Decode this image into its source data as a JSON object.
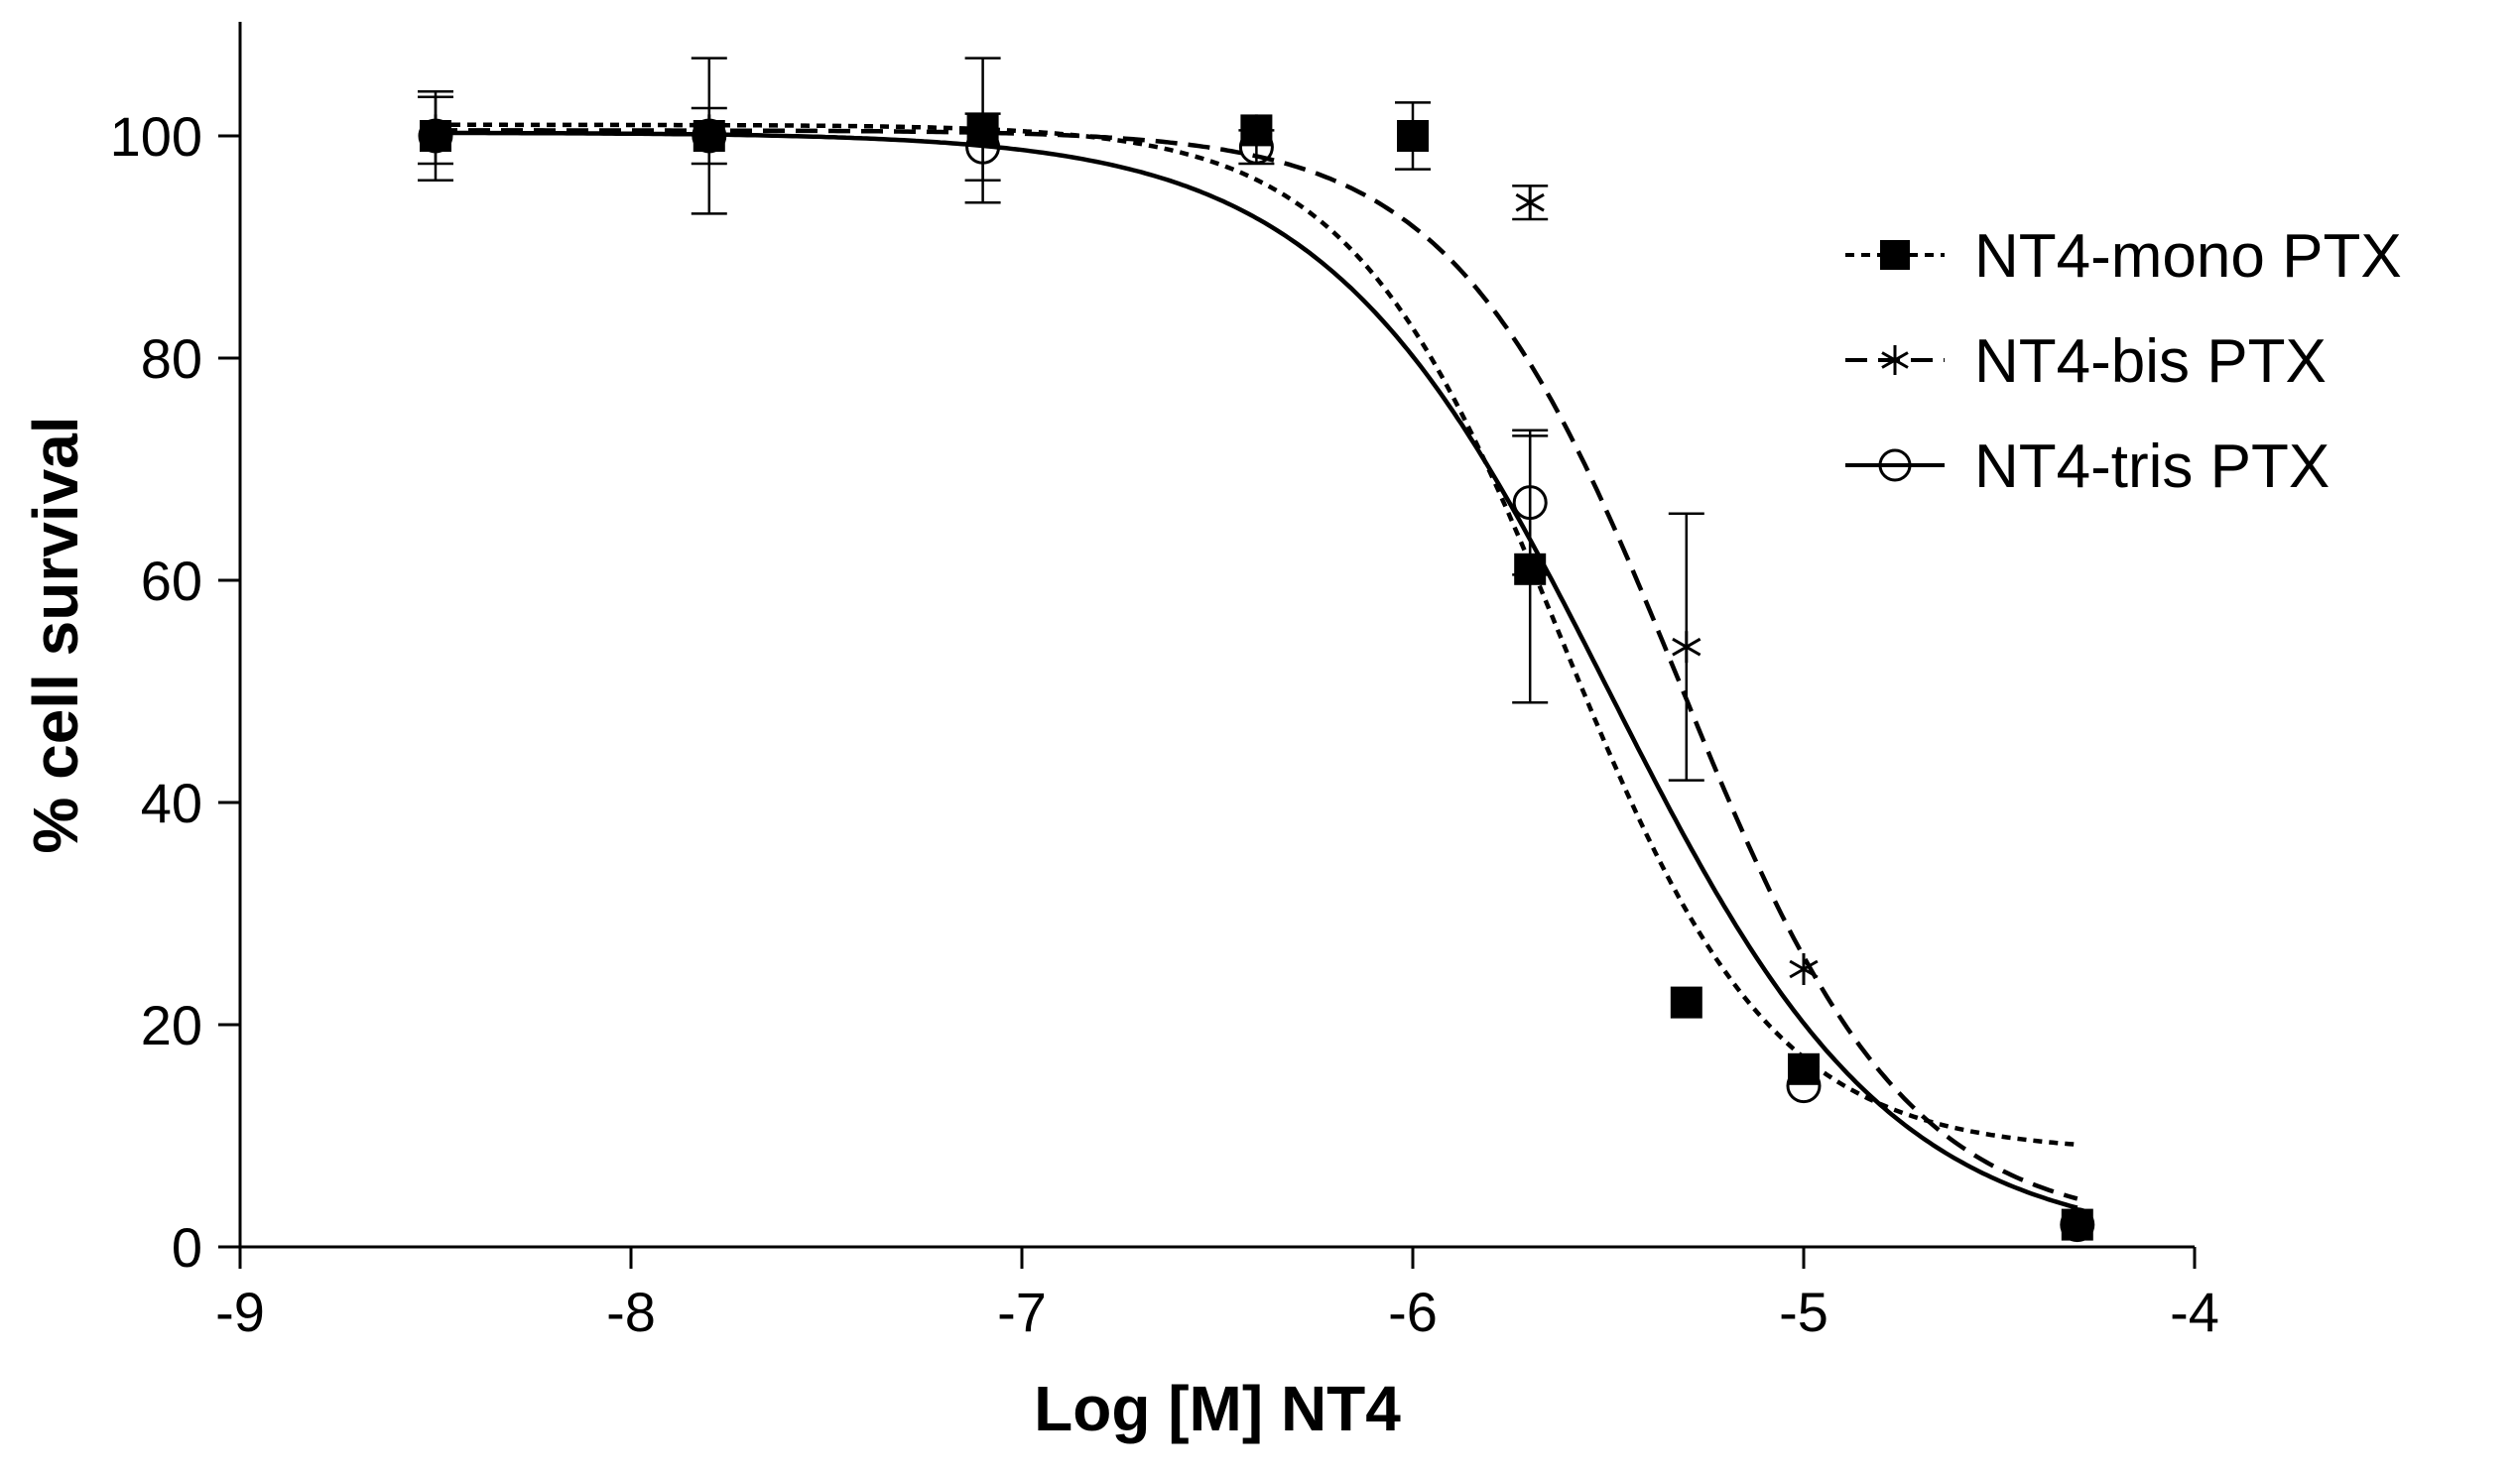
{
  "chart_data": {
    "type": "scatter",
    "title": "",
    "xlabel": "Log [M] NT4",
    "ylabel": "% cell survival",
    "xlim": [
      -9,
      -4
    ],
    "ylim": [
      0,
      110
    ],
    "xticks": [
      -9,
      -8,
      -7,
      -6,
      -5,
      -4
    ],
    "xtick_labels": [
      "-9",
      "-8",
      "-7",
      "-6",
      "-5",
      "-4"
    ],
    "yticks": [
      0,
      20,
      40,
      60,
      80,
      100
    ],
    "ytick_labels": [
      "0",
      "20",
      "40",
      "60",
      "80",
      "100"
    ],
    "grid": false,
    "legend_position": "right-upper",
    "series": [
      {
        "name": "NT4-mono PTX",
        "marker": "filled-square",
        "line_style": "dotted",
        "x": [
          -8.5,
          -7.8,
          -7.1,
          -6.4,
          -6.0,
          -5.7,
          -5.3,
          -5.0,
          -4.3
        ],
        "y": [
          100,
          100,
          100.5,
          100.5,
          100,
          61,
          22,
          16,
          2
        ],
        "err": [
          4,
          7,
          6.5,
          0,
          3,
          12,
          0,
          0,
          0
        ],
        "fit": {
          "top": 101,
          "bottom": 8.5,
          "log_ec50": -5.62,
          "hill": 1.6
        }
      },
      {
        "name": "NT4-bis PTX",
        "marker": "asterisk",
        "line_style": "dashed",
        "x": [
          -8.5,
          -7.8,
          -7.1,
          -6.4,
          -6.0,
          -5.7,
          -5.3,
          -5.0,
          -4.3
        ],
        "y": [
          100.5,
          100.5,
          100.5,
          100.5,
          100,
          94,
          54,
          25,
          2
        ],
        "err": [
          3,
          0,
          0,
          0,
          0,
          1.5,
          12,
          0,
          0
        ],
        "fit": {
          "top": 100.5,
          "bottom": 1.5,
          "log_ec50": -5.32,
          "hill": 1.5
        }
      },
      {
        "name": "NT4-tris PTX",
        "marker": "open-circle",
        "line_style": "solid",
        "x": [
          -8.5,
          -7.8,
          -7.1,
          -6.4,
          -5.7,
          -5.0,
          -4.3
        ],
        "y": [
          100,
          100,
          99,
          99,
          67,
          14.5,
          2
        ],
        "err": [
          0,
          2.5,
          3,
          1.5,
          6.5,
          0,
          0
        ],
        "fit": {
          "top": 100.3,
          "bottom": 0,
          "log_ec50": -5.5,
          "hill": 1.2
        }
      }
    ]
  }
}
